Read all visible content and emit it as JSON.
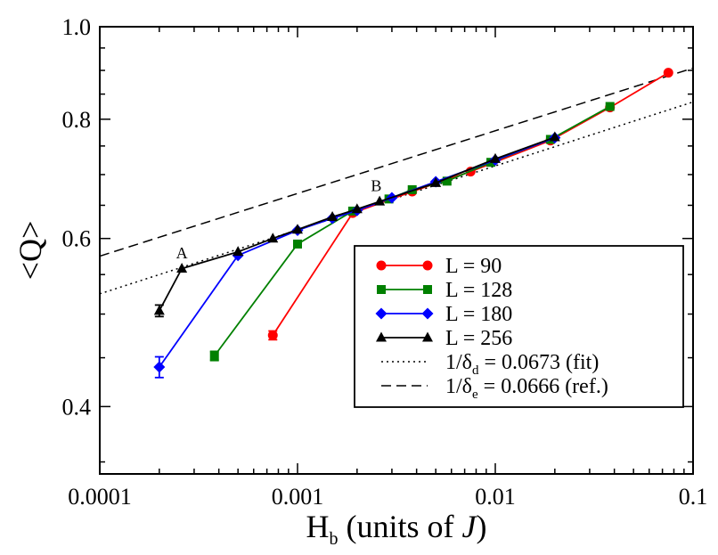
{
  "chart_data": {
    "type": "line",
    "xscale": "log",
    "yscale": "log",
    "xlim": [
      0.0001,
      0.1
    ],
    "ylim": [
      0.34,
      1.0
    ],
    "xlabel": {
      "main": "H",
      "sub": "b",
      "rest": " (units of ",
      "italic": "J",
      "close": ")"
    },
    "ylabel": "<Q>",
    "x_ticks": [
      {
        "value": 0.0001,
        "label": "0.0001"
      },
      {
        "value": 0.001,
        "label": "0.001"
      },
      {
        "value": 0.01,
        "label": "0.01"
      },
      {
        "value": 0.1,
        "label": "0.1"
      }
    ],
    "y_ticks": [
      {
        "value": 0.4,
        "label": "0.4"
      },
      {
        "value": 0.6,
        "label": "0.6"
      },
      {
        "value": 0.8,
        "label": "0.8"
      },
      {
        "value": 1.0,
        "label": "1.0"
      }
    ],
    "series": [
      {
        "name": "L = 90",
        "color": "#ff0000",
        "marker": "circle",
        "x": [
          0.00075,
          0.0019,
          0.0038,
          0.0075,
          0.019,
          0.038,
          0.075
        ],
        "y": [
          0.475,
          0.638,
          0.672,
          0.705,
          0.76,
          0.823,
          0.895
        ],
        "err": [
          0.005,
          0,
          0,
          0,
          0,
          0,
          0
        ]
      },
      {
        "name": "L = 128",
        "color": "#008000",
        "marker": "square",
        "x": [
          0.00038,
          0.001,
          0.0019,
          0.0029,
          0.0038,
          0.0057,
          0.0095,
          0.019,
          0.038
        ],
        "y": [
          0.452,
          0.592,
          0.641,
          0.66,
          0.675,
          0.689,
          0.721,
          0.762,
          0.825
        ],
        "err": [
          0.005,
          0,
          0,
          0,
          0,
          0,
          0,
          0,
          0
        ]
      },
      {
        "name": "L = 180",
        "color": "#0000ff",
        "marker": "diamond",
        "x": [
          0.0002,
          0.0005,
          0.001,
          0.0015,
          0.002,
          0.003,
          0.005,
          0.01,
          0.02
        ],
        "y": [
          0.44,
          0.576,
          0.612,
          0.63,
          0.642,
          0.662,
          0.688,
          0.725,
          0.765
        ],
        "err": [
          0.011,
          0,
          0,
          0,
          0,
          0,
          0,
          0,
          0
        ]
      },
      {
        "name": "L = 256",
        "color": "#000000",
        "marker": "triangle",
        "x": [
          0.0002,
          0.00026,
          0.0005,
          0.00075,
          0.001,
          0.0015,
          0.002,
          0.0026,
          0.005,
          0.01,
          0.02
        ],
        "y": [
          0.504,
          0.558,
          0.581,
          0.6,
          0.613,
          0.632,
          0.644,
          0.656,
          0.686,
          0.727,
          0.766
        ],
        "err": [
          0.007,
          0,
          0,
          0,
          0,
          0,
          0,
          0,
          0,
          0,
          0
        ]
      }
    ],
    "reference_lines": [
      {
        "name": "dotted",
        "dash": "2,4",
        "x": [
          0.0001,
          0.1
        ],
        "y": [
          0.525,
          0.834
        ],
        "legend": {
          "prefix": "1/",
          "symbol": "δ",
          "sub": "d",
          "rest": " = 0.0673 (fit)"
        }
      },
      {
        "name": "dashed",
        "dash": "11,6",
        "x": [
          0.0001,
          0.1
        ],
        "y": [
          0.575,
          0.905
        ],
        "legend": {
          "prefix": "1/",
          "symbol": "δ",
          "sub": "e",
          "rest": " = 0.0666 (ref.)"
        }
      }
    ],
    "annotations": [
      {
        "text": "A",
        "x": 0.00026,
        "y": 0.572
      },
      {
        "text": "B",
        "x": 0.0025,
        "y": 0.673
      }
    ],
    "legend_position": "lower-right"
  }
}
